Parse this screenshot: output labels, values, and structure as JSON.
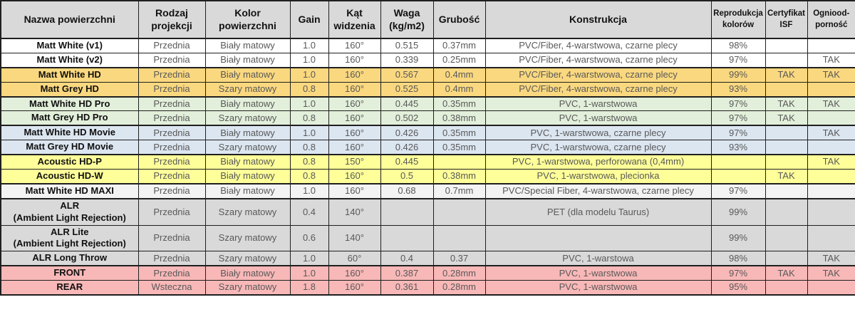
{
  "colors": {
    "header_bg": "#d9d9d9",
    "group_white": "#ffffff",
    "group_gold": "#fad87f",
    "group_green": "#e2efda",
    "group_blue": "#dce6f1",
    "group_yellow": "#feff99",
    "group_offwhite": "#f3f3f3",
    "group_gray": "#d9d9d9",
    "group_pink": "#f9b8b8",
    "border": "#1f1f1f",
    "data_text": "#595959",
    "name_text": "#101010"
  },
  "table": {
    "columns": [
      {
        "label": "Nazwa powierzchni"
      },
      {
        "label": "Rodzaj\nprojekcji"
      },
      {
        "label": "Kolor\npowierzchni"
      },
      {
        "label": "Gain"
      },
      {
        "label": "Kąt\nwidzenia"
      },
      {
        "label": "Waga\n(kg/m2)"
      },
      {
        "label": "Grubość"
      },
      {
        "label": "Konstrukcja"
      },
      {
        "label": "Reprodukcja\nkolorów"
      },
      {
        "label": "Certyfikat\nISF"
      },
      {
        "label": "Ogniood-\nporność"
      }
    ],
    "rows": [
      {
        "group": "white",
        "end": false,
        "cells": [
          "Matt White (v1)",
          "Przednia",
          "Biały matowy",
          "1.0",
          "160°",
          "0.515",
          "0.37mm",
          "PVC/Fiber, 4-warstwowa, czarne plecy",
          "98%",
          "",
          ""
        ]
      },
      {
        "group": "white",
        "end": true,
        "cells": [
          "Matt White (v2)",
          "Przednia",
          "Biały matowy",
          "1.0",
          "160°",
          "0.339",
          "0.25mm",
          "PVC/Fiber, 4-warstwowa, czarne plecy",
          "97%",
          "",
          "TAK"
        ]
      },
      {
        "group": "gold",
        "end": false,
        "cells": [
          "Matt White HD",
          "Przednia",
          "Biały matowy",
          "1.0",
          "160°",
          "0.567",
          "0.4mm",
          "PVC/Fiber, 4-warstwowa, czarne plecy",
          "99%",
          "TAK",
          "TAK"
        ]
      },
      {
        "group": "gold",
        "end": true,
        "cells": [
          "Matt Grey HD",
          "Przednia",
          "Szary matowy",
          "0.8",
          "160°",
          "0.525",
          "0.4mm",
          "PVC/Fiber, 4-warstwowa, czarne plecy",
          "93%",
          "",
          ""
        ]
      },
      {
        "group": "green",
        "end": false,
        "cells": [
          "Matt White HD Pro",
          "Przednia",
          "Biały matowy",
          "1.0",
          "160°",
          "0.445",
          "0.35mm",
          "PVC, 1-warstwowa",
          "97%",
          "TAK",
          "TAK"
        ]
      },
      {
        "group": "green",
        "end": true,
        "cells": [
          "Matt Grey HD Pro",
          "Przednia",
          "Szary matowy",
          "0.8",
          "160°",
          "0.502",
          "0.38mm",
          "PVC, 1-warstwowa",
          "97%",
          "TAK",
          ""
        ]
      },
      {
        "group": "blue",
        "end": false,
        "cells": [
          "Matt White HD Movie",
          "Przednia",
          "Biały matowy",
          "1.0",
          "160°",
          "0.426",
          "0.35mm",
          "PVC, 1-warstwowa, czarne plecy",
          "97%",
          "",
          "TAK"
        ]
      },
      {
        "group": "blue",
        "end": true,
        "cells": [
          "Matt Grey HD Movie",
          "Przednia",
          "Szary matowy",
          "0.8",
          "160°",
          "0.426",
          "0.35mm",
          "PVC, 1-warstwowa, czarne plecy",
          "93%",
          "",
          ""
        ]
      },
      {
        "group": "yellow",
        "end": false,
        "cells": [
          "Acoustic HD-P",
          "Przednia",
          "Biały matowy",
          "0.8",
          "150°",
          "0.445",
          "",
          "PVC, 1-warstwowa, perforowana (0,4mm)",
          "",
          "",
          "TAK"
        ]
      },
      {
        "group": "yellow",
        "end": true,
        "cells": [
          "Acoustic HD-W",
          "Przednia",
          "Biały matowy",
          "0.8",
          "160°",
          "0.5",
          "0.38mm",
          "PVC, 1-warstwowa, plecionka",
          "",
          "TAK",
          ""
        ]
      },
      {
        "group": "offwhite",
        "end": true,
        "cells": [
          "Matt White HD MAXI",
          "Przednia",
          "Biały matowy",
          "1.0",
          "160°",
          "0.68",
          "0.7mm",
          "PVC/Special Fiber, 4-warstwowa, czarne plecy",
          "97%",
          "",
          ""
        ]
      },
      {
        "group": "gray",
        "end": false,
        "cells": [
          "ALR\n(Ambient Light Rejection)",
          "Przednia",
          "Szary matowy",
          "0.4",
          "140°",
          "",
          "",
          "PET (dla modelu Taurus)",
          "99%",
          "",
          ""
        ]
      },
      {
        "group": "gray",
        "end": false,
        "cells": [
          "ALR Lite\n(Ambient Light Rejection)",
          "Przednia",
          "Szary matowy",
          "0.6",
          "140°",
          "",
          "",
          "",
          "99%",
          "",
          ""
        ]
      },
      {
        "group": "gray",
        "end": true,
        "cells": [
          "ALR Long Throw",
          "Przednia",
          "Szary matowy",
          "1.0",
          "60°",
          "0.4",
          "0.37",
          "PVC, 1-warstowa",
          "98%",
          "",
          "TAK"
        ]
      },
      {
        "group": "pink",
        "end": false,
        "cells": [
          "FRONT",
          "Przednia",
          "Biały matowy",
          "1.0",
          "160°",
          "0.387",
          "0.28mm",
          "PVC, 1-warstwowa",
          "97%",
          "TAK",
          "TAK"
        ]
      },
      {
        "group": "pink",
        "end": false,
        "cells": [
          "REAR",
          "Wsteczna",
          "Szary matowy",
          "1.8",
          "160°",
          "0.361",
          "0.28mm",
          "PVC, 1-warstwowa",
          "95%",
          "",
          ""
        ]
      }
    ]
  }
}
